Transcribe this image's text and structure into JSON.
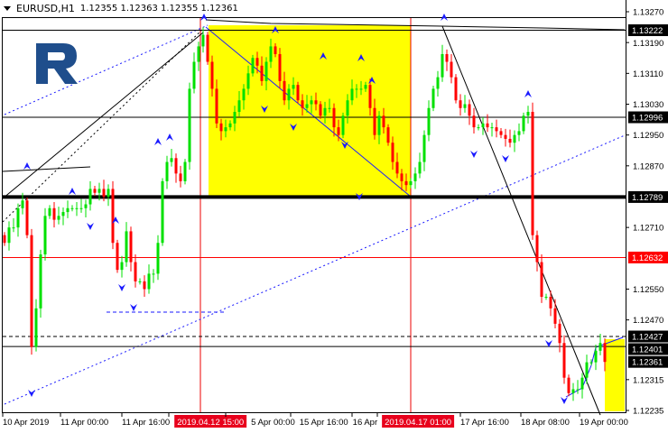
{
  "header": {
    "symbol": "EURUSD,H1",
    "ohlc": "1.12355 1.12363 1.12355 1.12361",
    "menu_icon": "triangle-down-icon"
  },
  "logo": {
    "text": "R",
    "color": "#1f4e8c"
  },
  "colors": {
    "bull": "#00e000",
    "bear": "#ff0000",
    "zone": "#ffff00",
    "fractal": "#1a1aff",
    "level_red": "#ff0000"
  },
  "chart_data": {
    "type": "candlestick",
    "title": "EURUSD,H1",
    "ylim": [
      1.12215,
      1.1329
    ],
    "y_ticks": [
      "1.13270",
      "1.13190",
      "1.13110",
      "1.13030",
      "1.12950",
      "1.12870",
      "1.12710",
      "1.12550",
      "1.12470",
      "1.12315",
      "1.12235"
    ],
    "x_ticks": [
      "10 Apr 2019",
      "11 Apr 00:00",
      "11 Apr 16:00",
      "2019.04.12 15:00",
      "5 Apr 00:00",
      "15 Apr 16:00",
      "16 Apr",
      "2019.04.17 01:00",
      "17 Apr 16:00",
      "18 Apr 08:00",
      "19 Apr 00:00"
    ],
    "x_ticks_highlighted": [
      "2019.04.12 15:00",
      "2019.04.17 01:00"
    ],
    "closes": [
      1.1267,
      1.1271,
      1.1271,
      1.1276,
      1.1278,
      1.1269,
      1.124,
      1.125,
      1.1264,
      1.1274,
      1.1276,
      1.1273,
      1.1274,
      1.1275,
      1.1276,
      1.1276,
      1.1276,
      1.1276,
      1.1277,
      1.1281,
      1.128,
      1.1281,
      1.1279,
      1.1281,
      1.1267,
      1.126,
      1.1262,
      1.127,
      1.1262,
      1.1257,
      1.1257,
      1.1255,
      1.1259,
      1.1259,
      1.1267,
      1.1283,
      1.1288,
      1.1289,
      1.1285,
      1.1283,
      1.1288,
      1.1307,
      1.1314,
      1.1318,
      1.1321,
      1.1314,
      1.1307,
      1.1298,
      1.1296,
      1.1297,
      1.1298,
      1.1301,
      1.1304,
      1.1307,
      1.1311,
      1.1315,
      1.1313,
      1.1309,
      1.1314,
      1.1318,
      1.1316,
      1.1309,
      1.1304,
      1.1307,
      1.1308,
      1.1304,
      1.1302,
      1.1303,
      1.1304,
      1.1303,
      1.13,
      1.1302,
      1.1302,
      1.1297,
      1.1295,
      1.13,
      1.1304,
      1.1307,
      1.1307,
      1.1307,
      1.1308,
      1.1302,
      1.1295,
      1.13,
      1.1297,
      1.1293,
      1.1288,
      1.1285,
      1.1283,
      1.1282,
      1.1283,
      1.1285,
      1.1288,
      1.1295,
      1.1302,
      1.1307,
      1.131,
      1.1316,
      1.1314,
      1.131,
      1.1304,
      1.1302,
      1.1303,
      1.13,
      1.1297,
      1.1297,
      1.1298,
      1.1297,
      1.1297,
      1.1296,
      1.1295,
      1.1294,
      1.1293,
      1.1295,
      1.1296,
      1.13,
      1.1301,
      1.1269,
      1.1262,
      1.1253,
      1.1253,
      1.125,
      1.1246,
      1.1241,
      1.1232,
      1.1228,
      1.1229,
      1.1229,
      1.1232,
      1.1236,
      1.1236,
      1.1239,
      1.1241,
      1.12361
    ],
    "levels": [
      {
        "price": 1.13222,
        "label": "1.13222",
        "style": "solid",
        "color": "#000000"
      },
      {
        "price": 1.12996,
        "label": "1.12996",
        "style": "solid",
        "color": "#000000"
      },
      {
        "price": 1.12789,
        "label": "1.12789",
        "style": "thick",
        "color": "#000000"
      },
      {
        "price": 1.12632,
        "label": "1.12632",
        "style": "solid",
        "color": "#ff0000"
      },
      {
        "price": 1.12427,
        "label": "1.12427",
        "style": "dashed",
        "color": "#000000"
      },
      {
        "price": 1.12401,
        "label": "1.12401",
        "style": "solid",
        "color": "#000000"
      },
      {
        "price": 1.12361,
        "label": "1.12361",
        "style": "bid",
        "color": "#000000"
      }
    ]
  }
}
